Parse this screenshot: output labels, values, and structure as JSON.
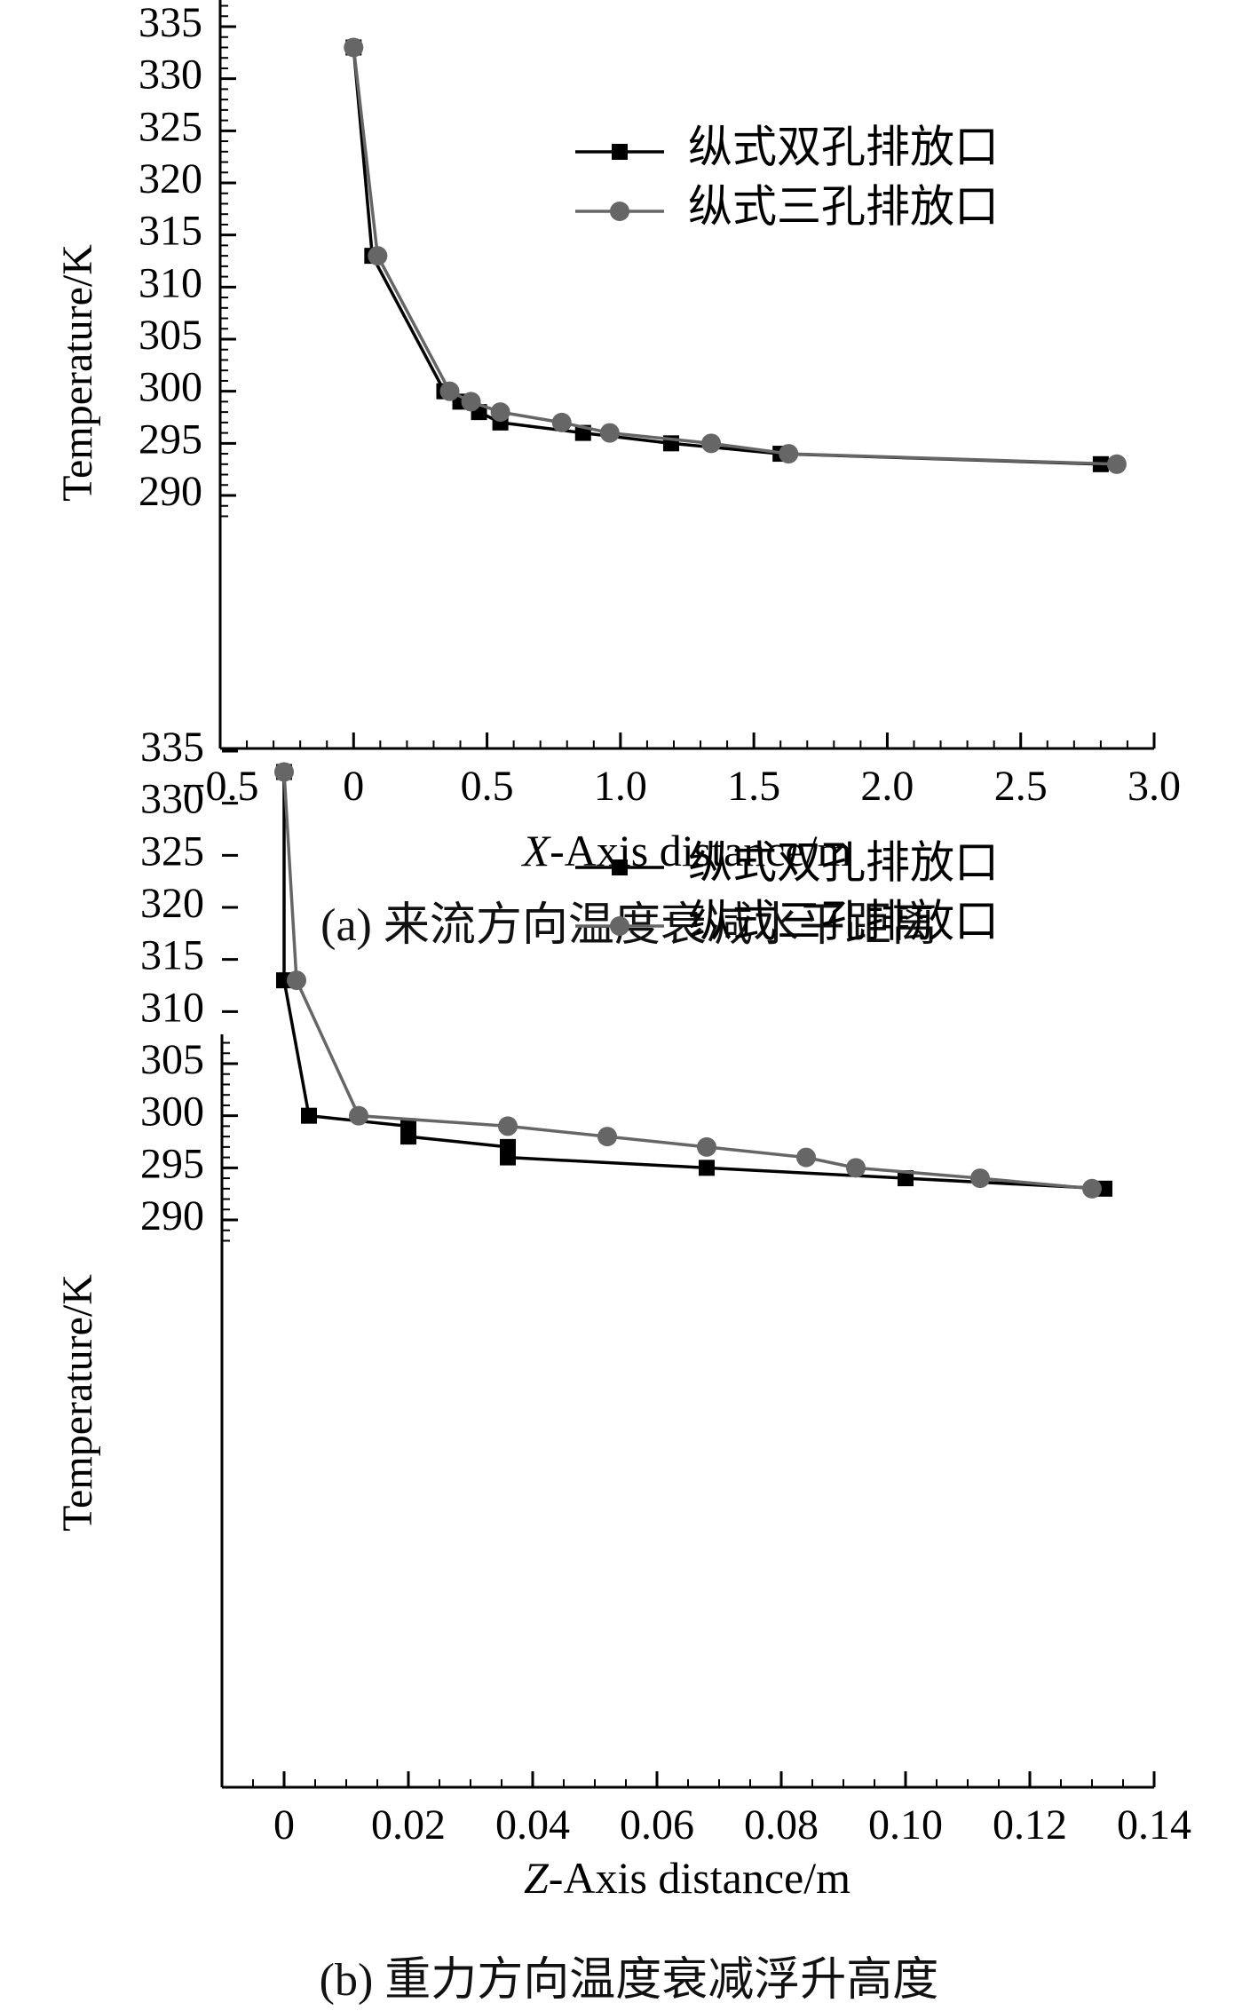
{
  "chart_data": [
    {
      "type": "line",
      "title": "",
      "caption": "(a) 来流方向温度衰减水平距离",
      "xlabel_var": "X",
      "xlabel_rest": "-Axis distance/m",
      "ylabel": "Temperature/K",
      "xlim": [
        -0.5,
        3.0
      ],
      "ylim": [
        287.5,
        337.5
      ],
      "xticks": [
        -0.5,
        0,
        0.5,
        1.0,
        1.5,
        2.0,
        2.5,
        3.0
      ],
      "xtick_labels": [
        "−0.5",
        "0",
        "0.5",
        "1.0",
        "1.5",
        "2.0",
        "2.5",
        "3.0"
      ],
      "yticks": [
        290,
        295,
        300,
        305,
        310,
        315,
        320,
        325,
        330,
        335
      ],
      "ytick_labels": [
        "290",
        "295",
        "300",
        "305",
        "310",
        "315",
        "320",
        "325",
        "330",
        "335"
      ],
      "legend_position": "upper-right",
      "series": [
        {
          "name": "纵式双孔排放口",
          "marker": "square",
          "color": "#000000",
          "x": [
            0.0,
            0.07,
            0.34,
            0.4,
            0.47,
            0.55,
            0.86,
            1.19,
            1.6,
            2.8
          ],
          "y": [
            333,
            313,
            300,
            299,
            298,
            297,
            296,
            295,
            294,
            293
          ]
        },
        {
          "name": "纵式三孔排放口",
          "marker": "circle",
          "color": "#666666",
          "x": [
            0.0,
            0.09,
            0.36,
            0.44,
            0.55,
            0.78,
            0.96,
            1.34,
            1.63,
            2.86
          ],
          "y": [
            333,
            313,
            300,
            299,
            298,
            297,
            296,
            295,
            294,
            293
          ]
        }
      ]
    },
    {
      "type": "line",
      "title": "",
      "caption": "(b) 重力方向温度衰减浮升高度",
      "xlabel_var": "Z",
      "xlabel_rest": "-Axis distance/m",
      "ylabel": "Temperature/K",
      "xlim": [
        -0.01,
        0.14
      ],
      "ylim": [
        287.5,
        337.5
      ],
      "xticks": [
        0,
        0.02,
        0.04,
        0.06,
        0.08,
        0.1,
        0.12,
        0.14
      ],
      "xtick_labels": [
        "0",
        "0.02",
        "0.04",
        "0.06",
        "0.08",
        "0.10",
        "0.12",
        "0.14"
      ],
      "yticks": [
        290,
        295,
        300,
        305,
        310,
        315,
        320,
        325,
        330,
        335
      ],
      "ytick_labels": [
        "290",
        "295",
        "300",
        "305",
        "310",
        "315",
        "320",
        "325",
        "330",
        "335"
      ],
      "legend_position": "upper-right",
      "series": [
        {
          "name": "纵式双孔排放口",
          "marker": "square",
          "color": "#000000",
          "x": [
            0.0,
            0.0,
            0.004,
            0.02,
            0.02,
            0.036,
            0.036,
            0.068,
            0.1,
            0.132
          ],
          "y": [
            333,
            313,
            300,
            299,
            298,
            297,
            296,
            295,
            294,
            293
          ]
        },
        {
          "name": "纵式三孔排放口",
          "marker": "circle",
          "color": "#666666",
          "x": [
            0.0,
            0.002,
            0.012,
            0.036,
            0.052,
            0.068,
            0.084,
            0.092,
            0.112,
            0.13
          ],
          "y": [
            333,
            313,
            300,
            299,
            298,
            297,
            296,
            295,
            294,
            293
          ]
        }
      ]
    }
  ]
}
